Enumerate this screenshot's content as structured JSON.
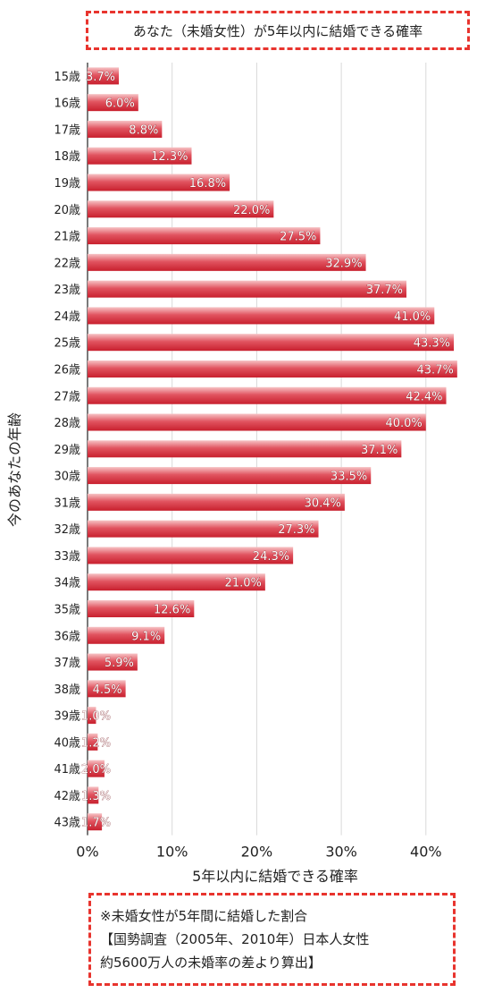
{
  "title": "あなた（未婚女性）が5年以内に結婚できる確率",
  "note": {
    "line1": "※未婚女性が5年間に結婚した割合",
    "line2": "【国勢調査（2005年、2010年）日本人女性",
    "line3": "約5600万人の未婚率の差より算出】"
  },
  "colors": {
    "bar_top": "#f6c3c5",
    "bar_mid": "#e15460",
    "bar_bottom": "#c8202e",
    "border": "#e8342e",
    "grid": "#d9d9d9"
  },
  "chart_data": {
    "type": "bar",
    "orientation": "horizontal",
    "title": "あなた（未婚女性）が5年以内に結婚できる確率",
    "xlabel": "5年以内に結婚できる確率",
    "ylabel": "今のあなたの年齢",
    "xlim": [
      0,
      45
    ],
    "xticks": [
      "0%",
      "10%",
      "20%",
      "30%",
      "40%"
    ],
    "xtick_values": [
      0,
      10,
      20,
      30,
      40
    ],
    "grid": "vertical",
    "categories": [
      "15歳",
      "16歳",
      "17歳",
      "18歳",
      "19歳",
      "20歳",
      "21歳",
      "22歳",
      "23歳",
      "24歳",
      "25歳",
      "26歳",
      "27歳",
      "28歳",
      "29歳",
      "30歳",
      "31歳",
      "32歳",
      "33歳",
      "34歳",
      "35歳",
      "36歳",
      "37歳",
      "38歳",
      "39歳",
      "40歳",
      "41歳",
      "42歳",
      "43歳"
    ],
    "values": [
      3.7,
      6.0,
      8.8,
      12.3,
      16.8,
      22.0,
      27.5,
      32.9,
      37.7,
      41.0,
      43.3,
      43.7,
      42.4,
      40.0,
      37.1,
      33.5,
      30.4,
      27.3,
      24.3,
      21.0,
      12.6,
      9.1,
      5.9,
      4.5,
      1.0,
      1.2,
      2.0,
      1.3,
      1.7
    ],
    "data_labels": [
      "3.7%",
      "6.0%",
      "8.8%",
      "12.3%",
      "16.8%",
      "22.0%",
      "27.5%",
      "32.9%",
      "37.7%",
      "41.0%",
      "43.3%",
      "43.7%",
      "42.4%",
      "40.0%",
      "37.1%",
      "33.5%",
      "30.4%",
      "27.3%",
      "24.3%",
      "21.0%",
      "12.6%",
      "9.1%",
      "5.9%",
      "4.5%",
      "1.0%",
      "1.2%",
      "2.0%",
      "1.3%",
      "1.7%"
    ]
  }
}
